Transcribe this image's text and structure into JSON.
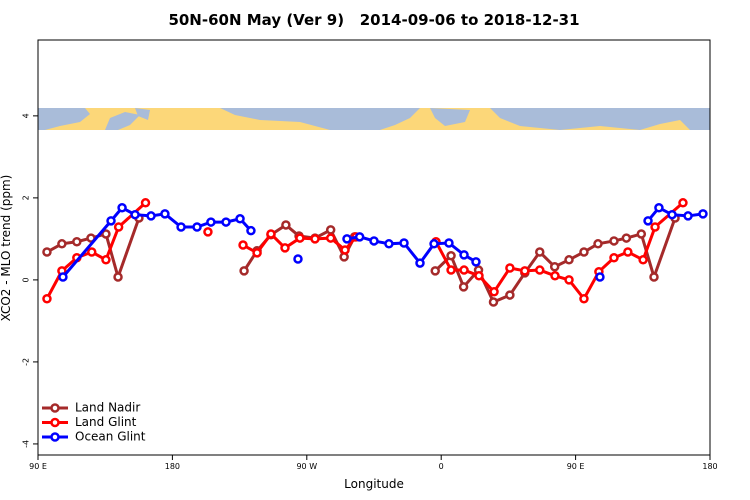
{
  "chart_data": {
    "type": "line",
    "title": "50N-60N May (Ver 9)   2014-09-06 to 2018-12-31",
    "x_label": "Longitude",
    "y_label": "XCO2 - MLO trend (ppm)",
    "xlim": [
      90,
      540
    ],
    "ylim": [
      -4.27,
      5.85
    ],
    "xticks": [
      {
        "value": 90,
        "label": "90 E"
      },
      {
        "value": 180,
        "label": "180"
      },
      {
        "value": 270,
        "label": "90 W"
      },
      {
        "value": 360,
        "label": "0"
      },
      {
        "value": 450,
        "label": "90 E"
      },
      {
        "value": 540,
        "label": "180"
      }
    ],
    "yticks": [
      -4,
      -2,
      0,
      2,
      4
    ],
    "legend": "bottom-left",
    "series": [
      {
        "name": "Land Nadir",
        "color": "#a52a2a",
        "x": [
          96,
          106,
          116,
          125.5,
          135.5,
          143.6,
          157.6,
          null,
          228,
          236.7,
          246,
          256,
          264.8,
          275.5,
          286,
          295,
          302,
          null,
          356,
          366.6,
          375,
          385,
          395,
          406,
          416,
          426,
          436,
          445.6,
          455.6,
          465,
          475.7,
          484,
          494,
          502.5,
          516.6
        ],
        "values": [
          0.68,
          0.88,
          0.93,
          1.02,
          1.12,
          0.07,
          1.51,
          null,
          0.22,
          0.71,
          1.1,
          1.34,
          1.07,
          1.02,
          1.22,
          0.56,
          1.05,
          null,
          0.22,
          0.59,
          -0.17,
          0.24,
          -0.54,
          -0.37,
          0.17,
          0.68,
          0.32,
          0.49,
          0.68,
          0.88,
          0.95,
          1.02,
          1.12,
          0.07,
          1.51
        ]
      },
      {
        "name": "Land Glint",
        "color": "#ff0000",
        "x": [
          96,
          106,
          116,
          126,
          135.5,
          144,
          162,
          null,
          203.8,
          null,
          227.3,
          236.7,
          246,
          255.4,
          265.4,
          275.5,
          286,
          295.6,
          302.9,
          null,
          356.5,
          366.6,
          375.3,
          385.3,
          395.4,
          406,
          416,
          426,
          436.2,
          445.6,
          455.6,
          465.6,
          475.7,
          485,
          495.2,
          503.2,
          521.9
        ],
        "values": [
          -0.46,
          0.22,
          0.54,
          0.68,
          0.49,
          1.29,
          1.88,
          null,
          1.17,
          null,
          0.85,
          0.66,
          1.12,
          0.78,
          1.02,
          1.0,
          1.02,
          0.73,
          1.05,
          null,
          0.93,
          0.24,
          0.24,
          0.1,
          -0.29,
          0.29,
          0.22,
          0.24,
          0.1,
          0,
          -0.46,
          0.2,
          0.54,
          0.68,
          0.49,
          1.29,
          1.88
        ]
      },
      {
        "name": "Ocean Glint",
        "color": "#0000ff",
        "x": [
          106.7,
          138.9,
          146.3,
          155,
          165.7,
          175,
          185.8,
          196.5,
          205.8,
          215.9,
          225.3,
          232.6,
          null,
          264.1,
          null,
          296.9,
          305.4,
          315,
          325,
          335.1,
          345.8,
          355.2,
          365.2,
          375.3,
          383.3,
          null,
          466.3,
          null,
          498.5,
          505.8,
          514.6,
          525.3,
          535.3
        ],
        "values": [
          0.07,
          1.44,
          1.76,
          1.59,
          1.56,
          1.61,
          1.29,
          1.29,
          1.41,
          1.41,
          1.49,
          1.2,
          null,
          0.51,
          null,
          1.0,
          1.05,
          0.95,
          0.88,
          0.9,
          0.41,
          0.88,
          0.9,
          0.61,
          0.44,
          null,
          0.07,
          null,
          1.44,
          1.76,
          1.59,
          1.56,
          1.61
        ]
      }
    ]
  }
}
